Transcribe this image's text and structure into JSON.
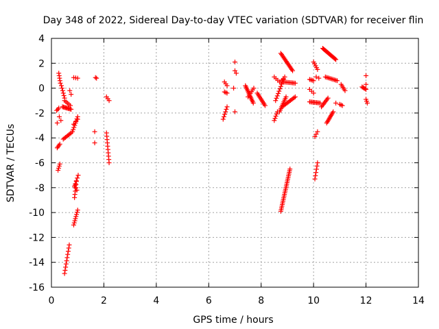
{
  "chart_data": {
    "type": "scatter",
    "title": "Day 348 of 2022, Sidereal Day-to-day VTEC variation (SDTVAR) for receiver flin",
    "xlabel": "GPS time / hours",
    "ylabel": "SDTVAR / TECUs",
    "xlim": [
      0,
      14
    ],
    "ylim": [
      -16,
      4
    ],
    "xticks": [
      "0",
      "2",
      "4",
      "6",
      "8",
      "10",
      "12",
      "14"
    ],
    "yticks": [
      "4",
      "2",
      "0",
      "-2",
      "-4",
      "-6",
      "-8",
      "-10",
      "-12",
      "-14",
      "-16"
    ],
    "xtick_values": [
      0,
      2,
      4,
      6,
      8,
      10,
      12,
      14
    ],
    "ytick_values": [
      4,
      2,
      0,
      -2,
      -4,
      -6,
      -8,
      -10,
      -12,
      -14,
      -16
    ],
    "grid": true,
    "marker": "+",
    "color": "#ff0000",
    "segments": [
      {
        "x": [
          0.22,
          0.32
        ],
        "y": [
          -4.8,
          -4.5
        ],
        "n": 4
      },
      {
        "x": [
          0.25,
          0.32
        ],
        "y": [
          -6.6,
          -6.1
        ],
        "n": 4
      },
      {
        "x": [
          0.2,
          0.28
        ],
        "y": [
          -1.8,
          -1.6
        ],
        "n": 3
      },
      {
        "x": [
          0.28,
          0.34
        ],
        "y": [
          1.2,
          0.4
        ],
        "n": 5
      },
      {
        "x": [
          0.3,
          0.36
        ],
        "y": [
          -2.3,
          -2.6
        ],
        "n": 2
      },
      {
        "x": [
          0.22,
          0.25
        ],
        "y": [
          -2.8,
          -2.8
        ],
        "n": 1
      },
      {
        "x": [
          0.38,
          0.5
        ],
        "y": [
          0.2,
          -0.8
        ],
        "n": 6
      },
      {
        "x": [
          0.42,
          0.75
        ],
        "y": [
          -1.5,
          -1.7
        ],
        "n": 10
      },
      {
        "x": [
          0.5,
          0.72
        ],
        "y": [
          -1.0,
          -1.4
        ],
        "n": 5
      },
      {
        "x": [
          0.45,
          0.75
        ],
        "y": [
          -4.1,
          -3.6
        ],
        "n": 8
      },
      {
        "x": [
          0.7,
          0.75
        ],
        "y": [
          -0.2,
          -0.5
        ],
        "n": 2
      },
      {
        "x": [
          0.8,
          1.0
        ],
        "y": [
          -3.5,
          -2.3
        ],
        "n": 8
      },
      {
        "x": [
          0.85,
          1.0
        ],
        "y": [
          -2.9,
          -2.5
        ],
        "n": 3
      },
      {
        "x": [
          0.85,
          1.0
        ],
        "y": [
          0.85,
          0.8
        ],
        "n": 3
      },
      {
        "x": [
          0.88,
          1.02
        ],
        "y": [
          -7.9,
          -7.0
        ],
        "n": 5
      },
      {
        "x": [
          0.85,
          1.0
        ],
        "y": [
          -11.0,
          -9.8
        ],
        "n": 8
      },
      {
        "x": [
          0.88,
          0.95
        ],
        "y": [
          -8.8,
          -7.5
        ],
        "n": 6
      },
      {
        "x": [
          0.9,
          0.97
        ],
        "y": [
          -7.8,
          -8.2
        ],
        "n": 3
      },
      {
        "x": [
          0.5,
          0.68
        ],
        "y": [
          -14.9,
          -12.6
        ],
        "n": 10
      },
      {
        "x": [
          1.68,
          1.72
        ],
        "y": [
          0.85,
          0.8
        ],
        "n": 2
      },
      {
        "x": [
          1.65,
          1.7
        ],
        "y": [
          -3.5,
          -3.5
        ],
        "n": 1
      },
      {
        "x": [
          1.65,
          1.7
        ],
        "y": [
          -4.4,
          -4.4
        ],
        "n": 1
      },
      {
        "x": [
          2.1,
          2.2
        ],
        "y": [
          -0.7,
          -1.0
        ],
        "n": 3
      },
      {
        "x": [
          2.1,
          2.2
        ],
        "y": [
          -3.6,
          -6.0
        ],
        "n": 10
      },
      {
        "x": [
          6.6,
          6.7
        ],
        "y": [
          0.5,
          0.2
        ],
        "n": 3
      },
      {
        "x": [
          6.6,
          6.7
        ],
        "y": [
          -0.3,
          -0.4
        ],
        "n": 3
      },
      {
        "x": [
          6.55,
          6.7
        ],
        "y": [
          -2.5,
          -1.5
        ],
        "n": 6
      },
      {
        "x": [
          7.0,
          7.05
        ],
        "y": [
          2.1,
          2.1
        ],
        "n": 1
      },
      {
        "x": [
          7.0,
          7.05
        ],
        "y": [
          1.4,
          1.2
        ],
        "n": 2
      },
      {
        "x": [
          6.95,
          7.05
        ],
        "y": [
          0.0,
          0.0
        ],
        "n": 1
      },
      {
        "x": [
          7.0,
          7.02
        ],
        "y": [
          -1.9,
          -1.9
        ],
        "n": 1
      },
      {
        "x": [
          7.4,
          7.7
        ],
        "y": [
          0.2,
          -1.2
        ],
        "n": 14
      },
      {
        "x": [
          7.5,
          7.72
        ],
        "y": [
          -0.7,
          0.0
        ],
        "n": 6
      },
      {
        "x": [
          7.85,
          8.15
        ],
        "y": [
          -0.4,
          -1.4
        ],
        "n": 10
      },
      {
        "x": [
          8.5,
          8.62
        ],
        "y": [
          -2.6,
          -1.9
        ],
        "n": 5
      },
      {
        "x": [
          8.5,
          8.7
        ],
        "y": [
          0.9,
          0.5
        ],
        "n": 4
      },
      {
        "x": [
          8.55,
          8.85
        ],
        "y": [
          -1.0,
          0.7
        ],
        "n": 10
      },
      {
        "x": [
          8.7,
          8.95
        ],
        "y": [
          -1.9,
          -0.7
        ],
        "n": 10
      },
      {
        "x": [
          8.75,
          9.2
        ],
        "y": [
          2.8,
          1.4
        ],
        "n": 16
      },
      {
        "x": [
          8.75,
          8.9
        ],
        "y": [
          0.5,
          0.9
        ],
        "n": 4
      },
      {
        "x": [
          8.85,
          9.3
        ],
        "y": [
          0.5,
          0.4
        ],
        "n": 10
      },
      {
        "x": [
          8.8,
          9.3
        ],
        "y": [
          -1.5,
          -0.7
        ],
        "n": 12
      },
      {
        "x": [
          8.75,
          9.1
        ],
        "y": [
          -9.9,
          -6.5
        ],
        "n": 26
      },
      {
        "x": [
          9.85,
          10.0
        ],
        "y": [
          0.7,
          0.6
        ],
        "n": 4
      },
      {
        "x": [
          9.85,
          10.0
        ],
        "y": [
          -0.1,
          -0.4
        ],
        "n": 3
      },
      {
        "x": [
          9.85,
          10.25
        ],
        "y": [
          -1.1,
          -1.2
        ],
        "n": 10
      },
      {
        "x": [
          10.0,
          10.15
        ],
        "y": [
          2.1,
          1.5
        ],
        "n": 5
      },
      {
        "x": [
          10.1,
          10.2
        ],
        "y": [
          0.9,
          0.8
        ],
        "n": 2
      },
      {
        "x": [
          10.05,
          10.15
        ],
        "y": [
          -3.9,
          -3.5
        ],
        "n": 3
      },
      {
        "x": [
          10.05,
          10.15
        ],
        "y": [
          -7.3,
          -6.0
        ],
        "n": 6
      },
      {
        "x": [
          10.3,
          10.55
        ],
        "y": [
          -1.5,
          -0.8
        ],
        "n": 8
      },
      {
        "x": [
          10.35,
          10.85
        ],
        "y": [
          3.2,
          2.3
        ],
        "n": 18
      },
      {
        "x": [
          10.45,
          10.9
        ],
        "y": [
          0.9,
          0.6
        ],
        "n": 10
      },
      {
        "x": [
          10.5,
          10.75
        ],
        "y": [
          -2.8,
          -1.9
        ],
        "n": 10
      },
      {
        "x": [
          10.85,
          10.9
        ],
        "y": [
          -1.2,
          -1.2
        ],
        "n": 1
      },
      {
        "x": [
          11.05,
          11.2
        ],
        "y": [
          0.3,
          -0.2
        ],
        "n": 5
      },
      {
        "x": [
          11.0,
          11.1
        ],
        "y": [
          -1.3,
          -1.4
        ],
        "n": 3
      },
      {
        "x": [
          11.85,
          12.0
        ],
        "y": [
          0.1,
          -0.1
        ],
        "n": 5
      },
      {
        "x": [
          12.0,
          12.05
        ],
        "y": [
          1.0,
          1.0
        ],
        "n": 1
      },
      {
        "x": [
          12.0,
          12.05
        ],
        "y": [
          0.3,
          0.3
        ],
        "n": 1
      },
      {
        "x": [
          12.0,
          12.05
        ],
        "y": [
          -0.9,
          -1.2
        ],
        "n": 3
      }
    ]
  }
}
